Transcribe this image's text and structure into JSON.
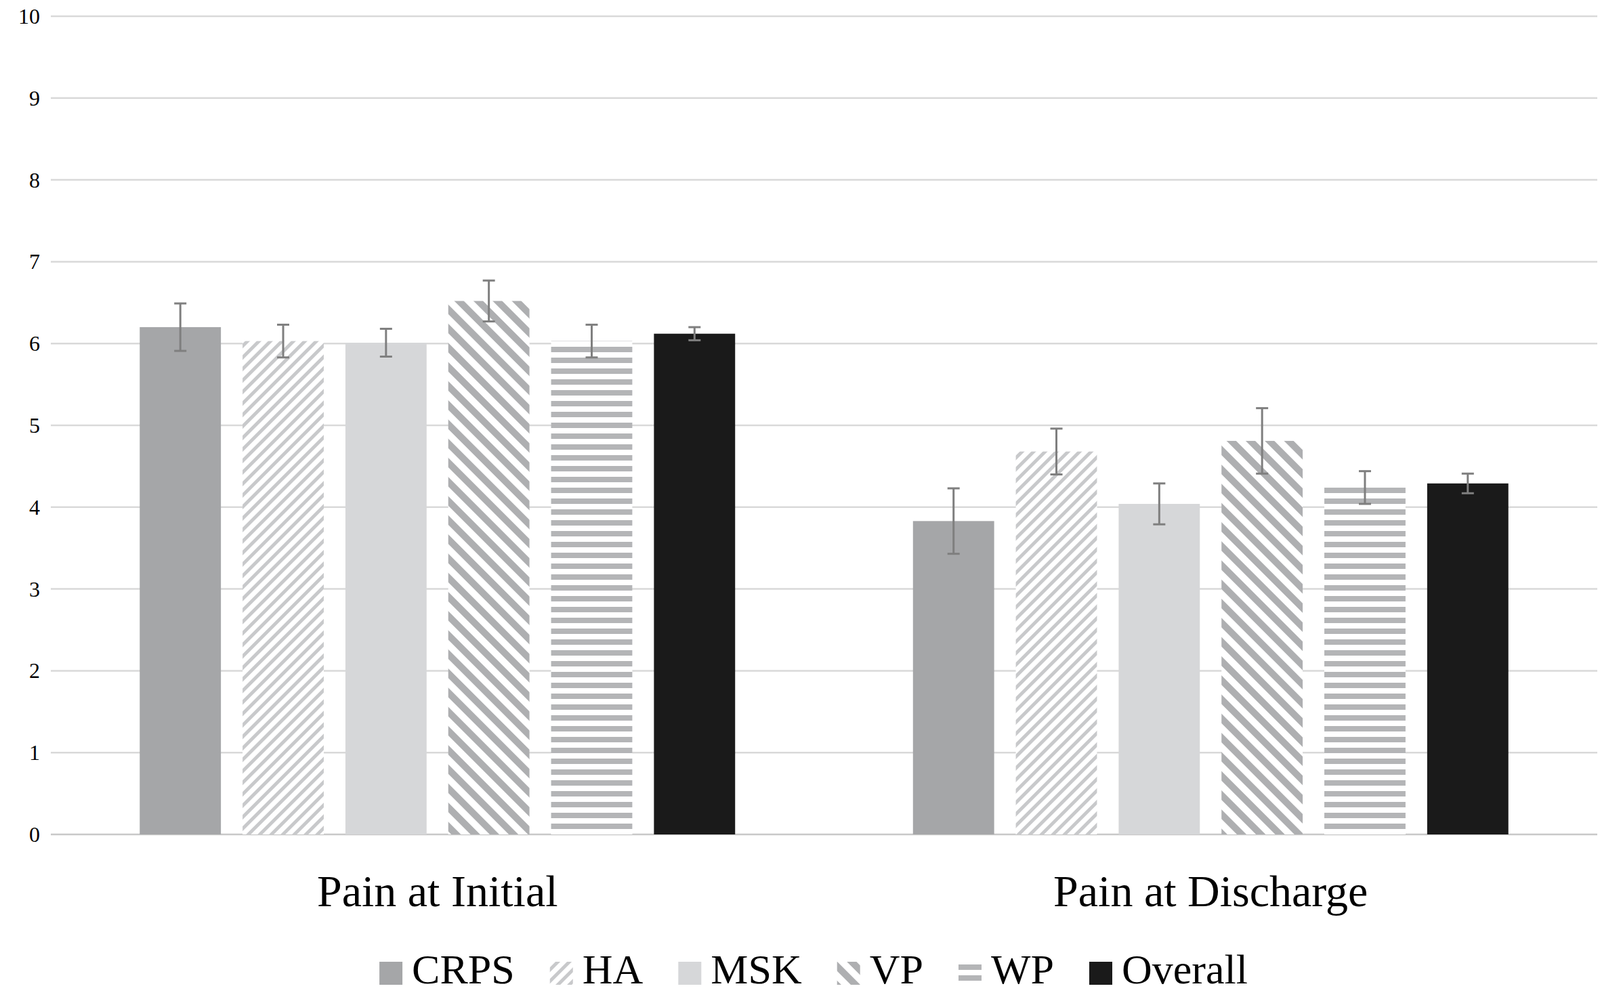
{
  "chart_data": {
    "type": "bar",
    "categories": [
      "Pain at Initial",
      "Pain at Discharge"
    ],
    "series": [
      {
        "name": "CRPS",
        "color": "#a5a6a8",
        "values": [
          6.2,
          3.83
        ],
        "errors": [
          0.29,
          0.4
        ]
      },
      {
        "name": "HA",
        "color": "#c8c9cb",
        "values": [
          6.03,
          4.68
        ],
        "errors": [
          0.2,
          0.28
        ]
      },
      {
        "name": "MSK",
        "color": "#d6d7d9",
        "values": [
          6.01,
          4.04
        ],
        "errors": [
          0.17,
          0.25
        ]
      },
      {
        "name": "VP",
        "color": "#aeafb1",
        "values": [
          6.52,
          4.81
        ],
        "errors": [
          0.25,
          0.4
        ]
      },
      {
        "name": "WP",
        "color": "#b4b5b7",
        "values": [
          6.03,
          4.24
        ],
        "errors": [
          0.2,
          0.2
        ]
      },
      {
        "name": "Overall",
        "color": "#1a1a1a",
        "values": [
          6.12,
          4.29
        ],
        "errors": [
          0.08,
          0.12
        ]
      }
    ],
    "ylim": [
      0,
      10
    ],
    "yticks": [
      0,
      1,
      2,
      3,
      4,
      5,
      6,
      7,
      8,
      9,
      10
    ],
    "grid": true,
    "legend": "bottom"
  }
}
